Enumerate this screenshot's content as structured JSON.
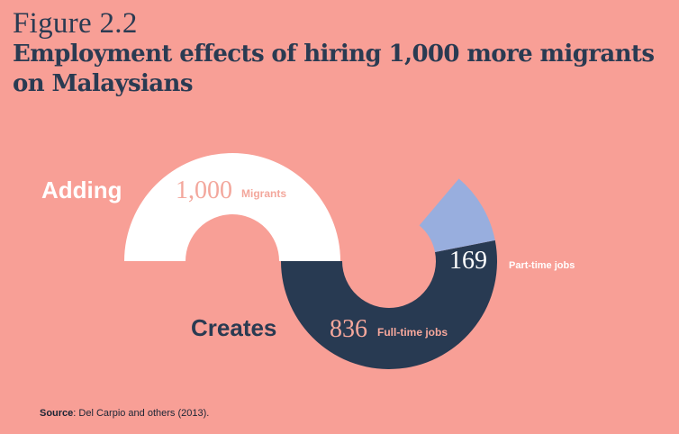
{
  "figure_label": "Figure 2.2",
  "title": "Employment effects of hiring 1,000 more migrants on Malaysians",
  "source_label": "Source",
  "source_text": ": Del Carpio and others (2013).",
  "colors": {
    "background": "#f89f96",
    "migrants": "#ffffff",
    "full_time": "#283a52",
    "part_time": "#98aede",
    "dark_text": "#2a3b52"
  },
  "chart_data": {
    "type": "pie",
    "title": "",
    "groups": [
      {
        "label": "Adding",
        "segments": [
          {
            "value": 1000,
            "value_text": "1,000",
            "label": "Migrants"
          }
        ]
      },
      {
        "label": "Creates",
        "segments": [
          {
            "value": 836,
            "value_text": "836",
            "label": "Full-time jobs"
          },
          {
            "value": 169,
            "value_text": "169",
            "label": "Part-time jobs"
          }
        ]
      }
    ]
  }
}
